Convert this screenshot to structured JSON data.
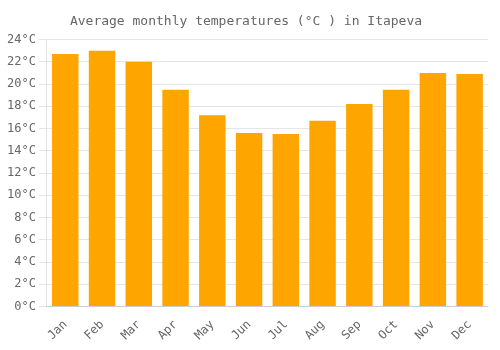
{
  "chart_data": {
    "type": "bar",
    "title": "Average monthly temperatures (°C ) in Itapeva",
    "categories": [
      "Jan",
      "Feb",
      "Mar",
      "Apr",
      "May",
      "Jun",
      "Jul",
      "Aug",
      "Sep",
      "Oct",
      "Nov",
      "Dec"
    ],
    "values": [
      22.7,
      23.0,
      22.0,
      19.5,
      17.2,
      15.6,
      15.5,
      16.7,
      18.2,
      19.5,
      21.0,
      20.9
    ],
    "color": "#FFA500",
    "ylim": [
      0,
      24
    ],
    "yticks": [
      {
        "value": 0,
        "label": "0°C"
      },
      {
        "value": 2,
        "label": "2°C"
      },
      {
        "value": 4,
        "label": "4°C"
      },
      {
        "value": 6,
        "label": "6°C"
      },
      {
        "value": 8,
        "label": "8°C"
      },
      {
        "value": 10,
        "label": "10°C"
      },
      {
        "value": 12,
        "label": "12°C"
      },
      {
        "value": 14,
        "label": "14°C"
      },
      {
        "value": 16,
        "label": "16°C"
      },
      {
        "value": 18,
        "label": "18°C"
      },
      {
        "value": 20,
        "label": "20°C"
      },
      {
        "value": 22,
        "label": "22°C"
      },
      {
        "value": 24,
        "label": "24°C"
      }
    ],
    "grid": true
  }
}
